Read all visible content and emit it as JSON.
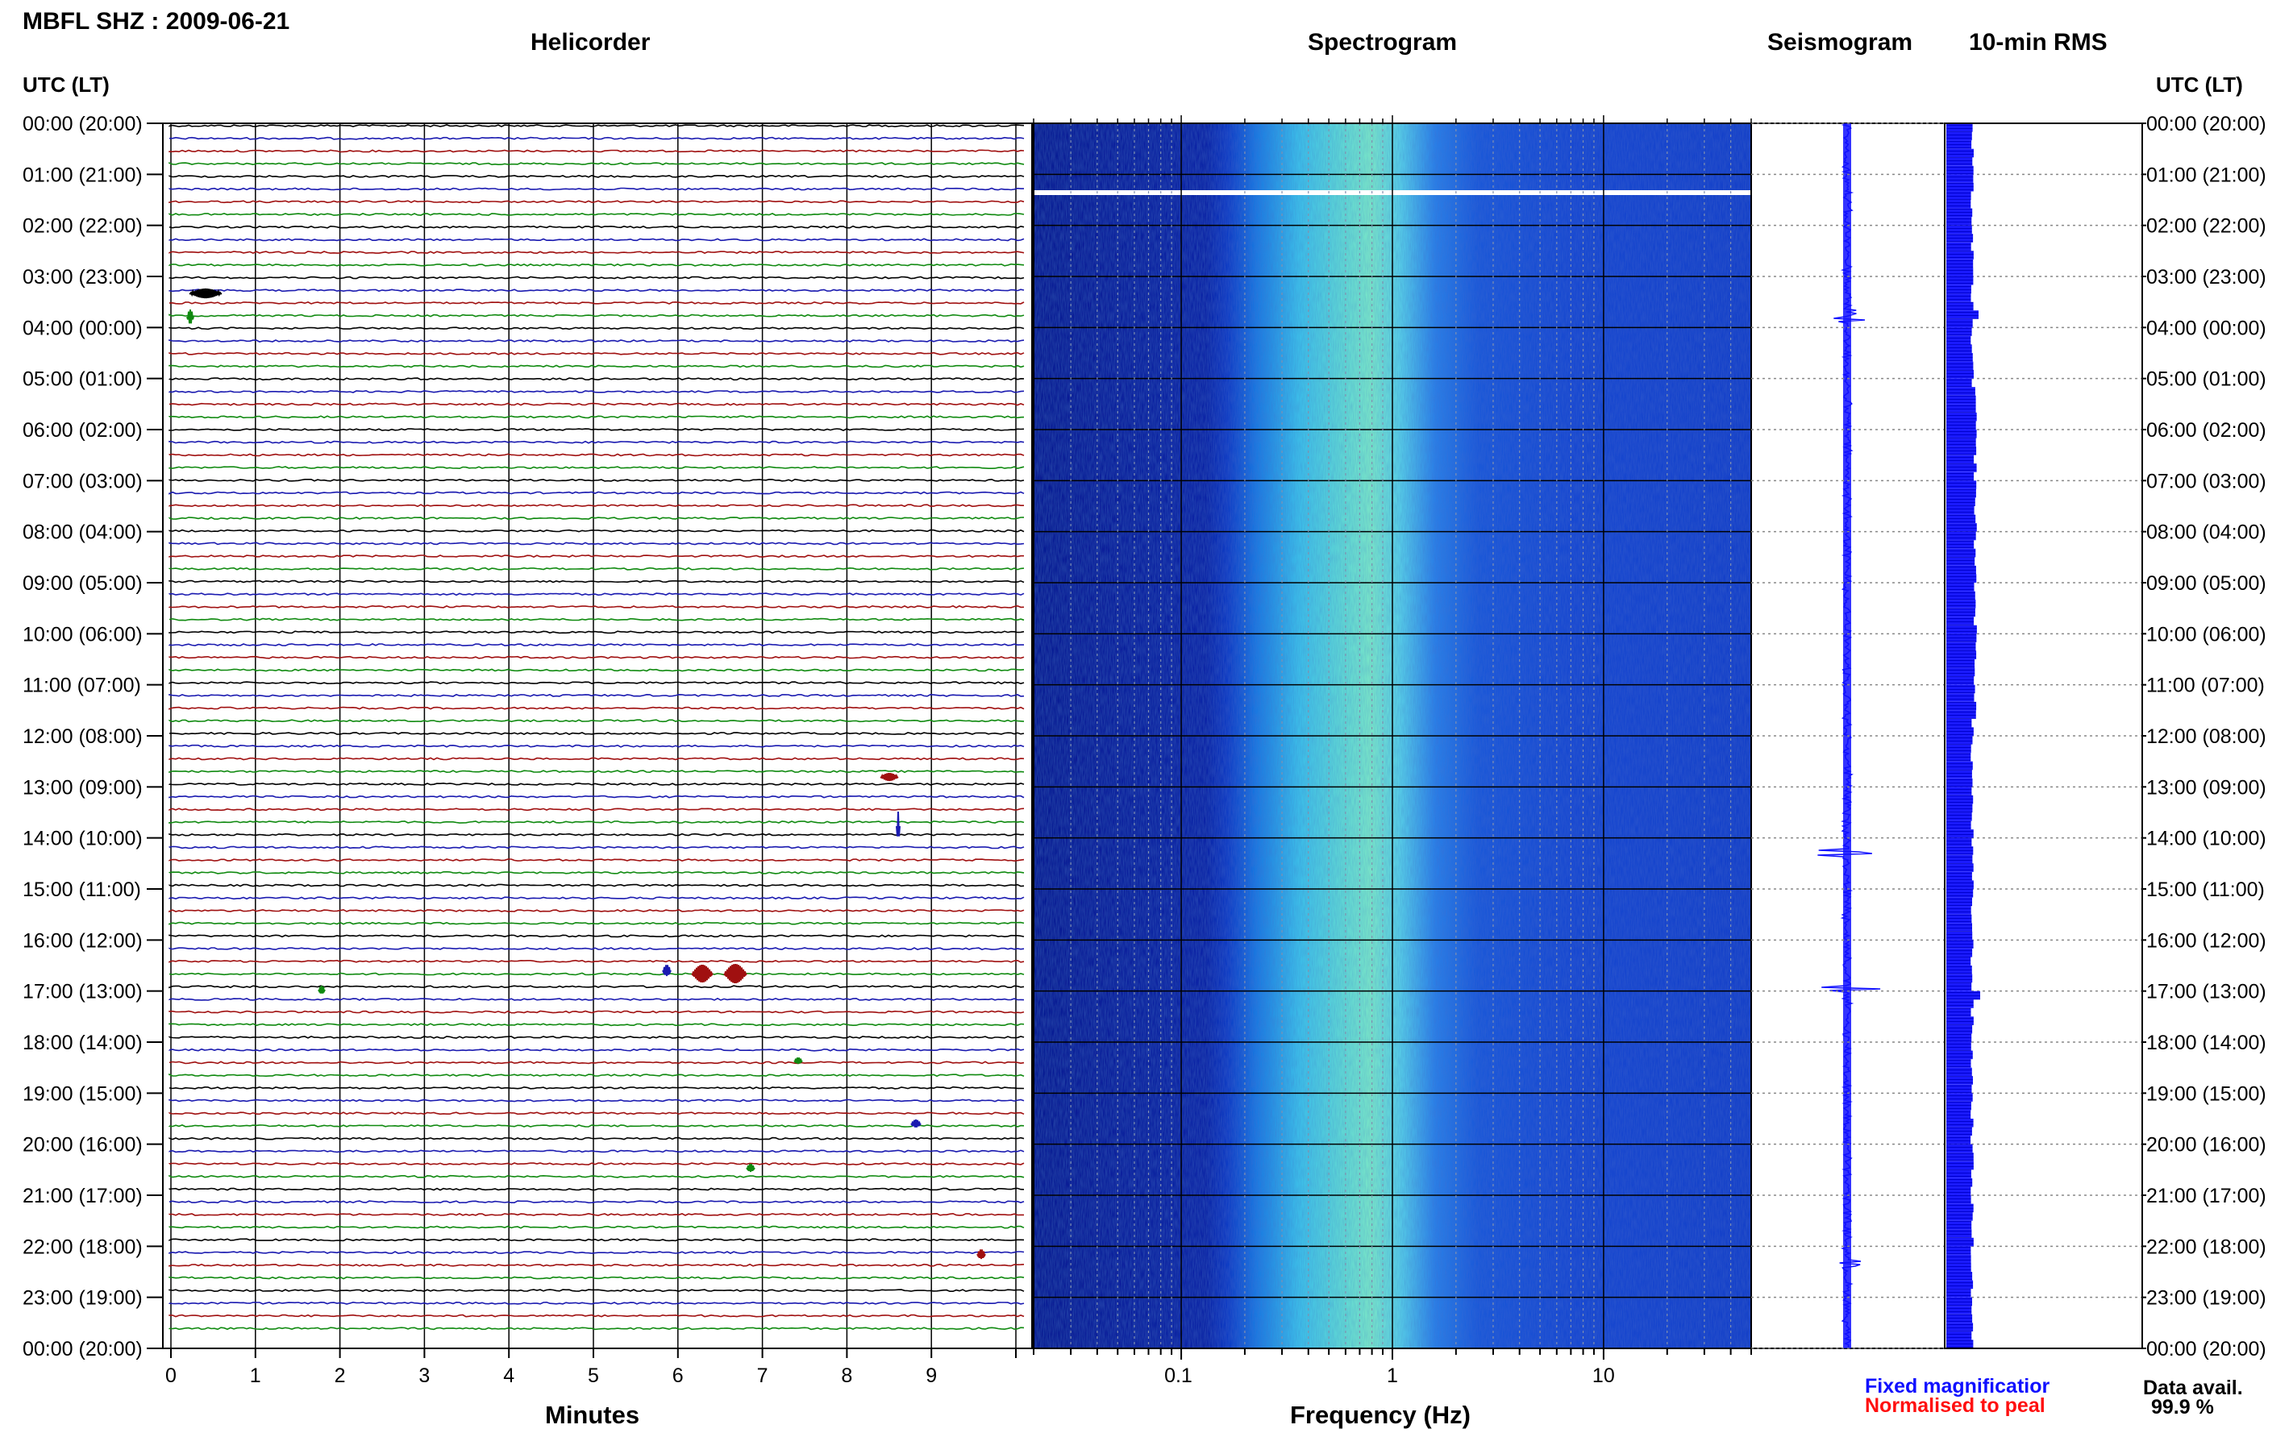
{
  "station_title": "MBFL SHZ : 2009-06-21",
  "panels": {
    "helicorder": "Helicorder",
    "spectrogram": "Spectrogram",
    "seismogram": "Seismogram",
    "rms": "10-min RMS"
  },
  "axis_header_left": "UTC (LT)",
  "axis_header_right": "UTC (LT)",
  "time_labels": [
    "00:00 (20:00)",
    "01:00 (21:00)",
    "02:00 (22:00)",
    "03:00 (23:00)",
    "04:00 (00:00)",
    "05:00 (01:00)",
    "06:00 (02:00)",
    "07:00 (03:00)",
    "08:00 (04:00)",
    "09:00 (05:00)",
    "10:00 (06:00)",
    "11:00 (07:00)",
    "12:00 (08:00)",
    "13:00 (09:00)",
    "14:00 (10:00)",
    "15:00 (11:00)",
    "16:00 (12:00)",
    "17:00 (13:00)",
    "18:00 (14:00)",
    "19:00 (15:00)",
    "20:00 (16:00)",
    "21:00 (17:00)",
    "22:00 (18:00)",
    "23:00 (19:00)",
    "00:00 (20:00)"
  ],
  "minutes_ticks": [
    "0",
    "1",
    "2",
    "3",
    "4",
    "5",
    "6",
    "7",
    "8",
    "9"
  ],
  "minutes_label": "Minutes",
  "freq_ticks": [
    "0.1",
    "1",
    "10"
  ],
  "freq_label": "Frequency (Hz)",
  "legend": {
    "fixed": "Fixed magnificatior",
    "normalised": "Normalised to peal",
    "fixed_color": "#1010ff",
    "normalised_color": "#ff1010"
  },
  "data_avail_label": "Data avail.",
  "data_avail_value": "99.9 %",
  "trace_colors": [
    "#000000",
    "#1a1ab0",
    "#a01010",
    "#108a10"
  ]
}
